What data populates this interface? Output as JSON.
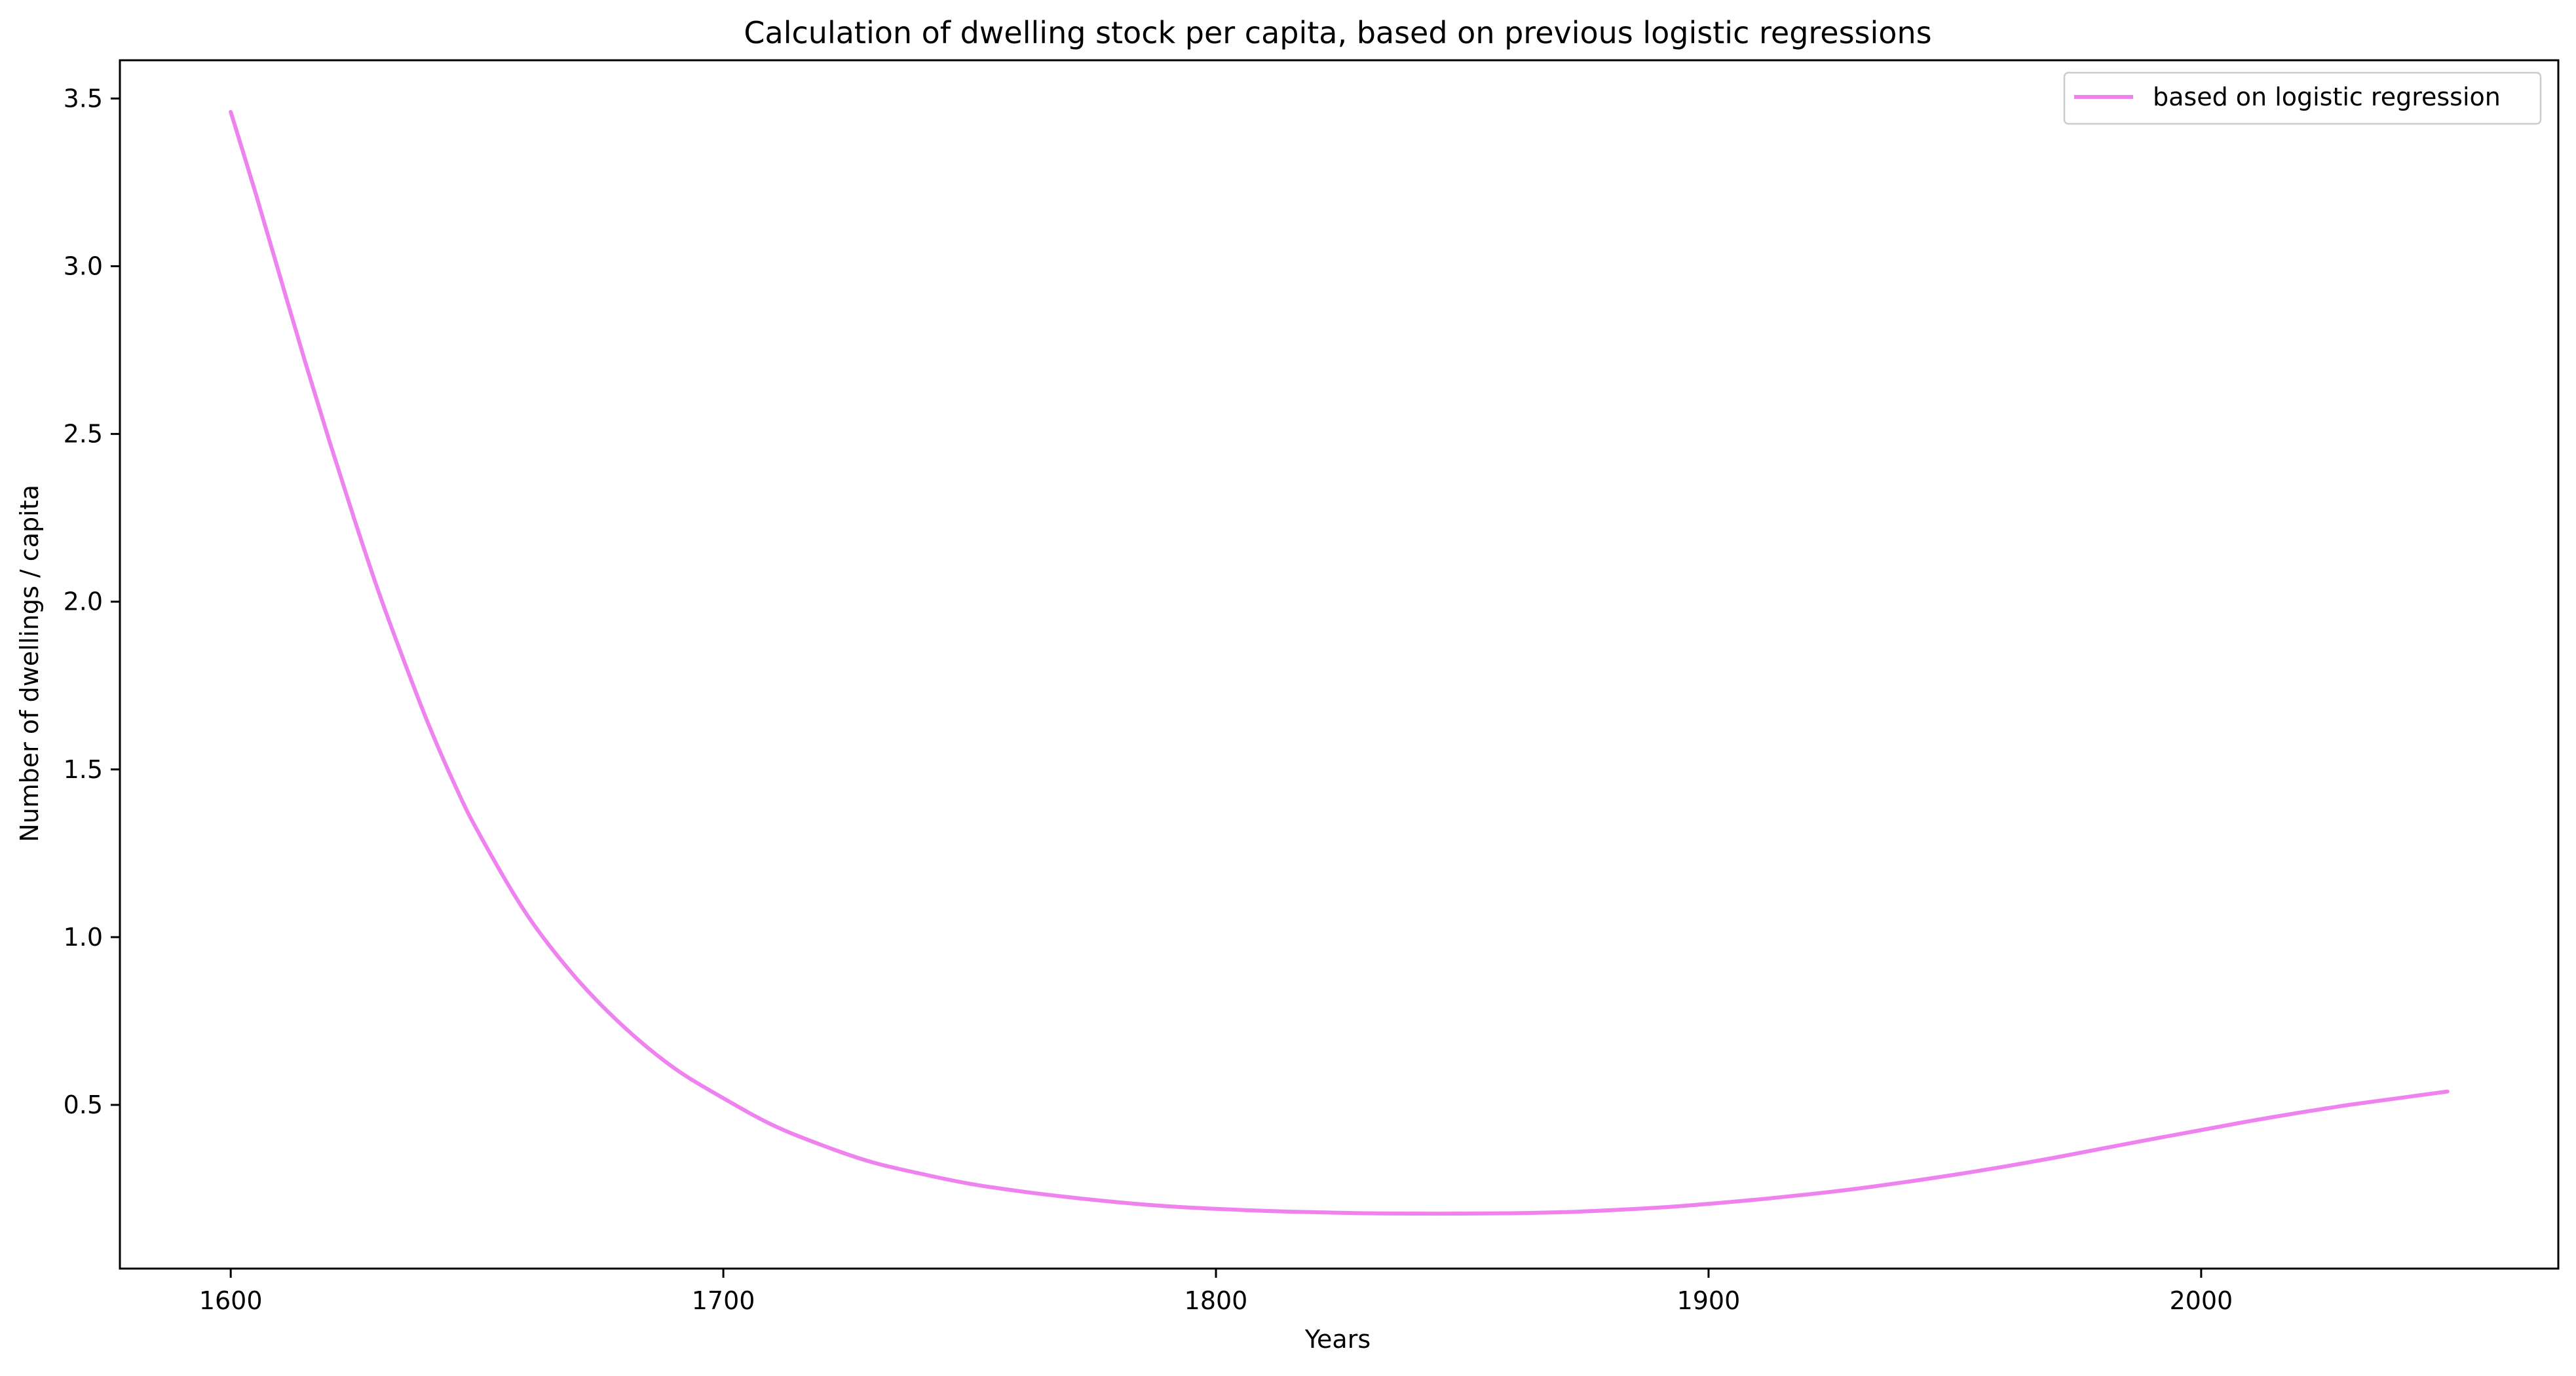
{
  "chart_data": {
    "type": "line",
    "title": "Calculation of dwelling stock per capita, based on previous logistic regressions",
    "xlabel": "Years",
    "ylabel": "Number of dwellings / capita",
    "xlim": [
      1577.5,
      2072.5
    ],
    "ylim": [
      0.012,
      3.614
    ],
    "x_ticks": [
      1600,
      1700,
      1800,
      1900,
      2000
    ],
    "x_tick_labels": [
      "1600",
      "1700",
      "1800",
      "1900",
      "2000"
    ],
    "y_ticks": [
      0.5,
      1.0,
      1.5,
      2.0,
      2.5,
      3.0,
      3.5
    ],
    "y_tick_labels": [
      "0.5",
      "1.0",
      "1.5",
      "2.0",
      "2.5",
      "3.0",
      "3.5"
    ],
    "grid": false,
    "legend_position": "top-right",
    "series": [
      {
        "name": "based on logistic regression",
        "color": "#ee82ee",
        "x": [
          1600,
          1605,
          1610,
          1615,
          1620,
          1625,
          1630,
          1635,
          1640,
          1645,
          1650,
          1660,
          1670,
          1680,
          1690,
          1700,
          1710,
          1720,
          1730,
          1740,
          1750,
          1760,
          1770,
          1780,
          1790,
          1800,
          1810,
          1820,
          1830,
          1840,
          1850,
          1860,
          1870,
          1880,
          1890,
          1900,
          1910,
          1920,
          1930,
          1940,
          1950,
          1960,
          1970,
          1980,
          1990,
          2000,
          2010,
          2020,
          2030,
          2040,
          2050
        ],
        "y": [
          3.46,
          3.22,
          2.97,
          2.72,
          2.48,
          2.25,
          2.03,
          1.83,
          1.64,
          1.47,
          1.32,
          1.07,
          0.88,
          0.73,
          0.61,
          0.52,
          0.44,
          0.38,
          0.33,
          0.295,
          0.265,
          0.243,
          0.225,
          0.21,
          0.198,
          0.19,
          0.184,
          0.18,
          0.177,
          0.176,
          0.176,
          0.177,
          0.18,
          0.186,
          0.194,
          0.205,
          0.218,
          0.233,
          0.25,
          0.27,
          0.292,
          0.316,
          0.342,
          0.37,
          0.398,
          0.425,
          0.452,
          0.477,
          0.5,
          0.52,
          0.54
        ]
      }
    ]
  }
}
